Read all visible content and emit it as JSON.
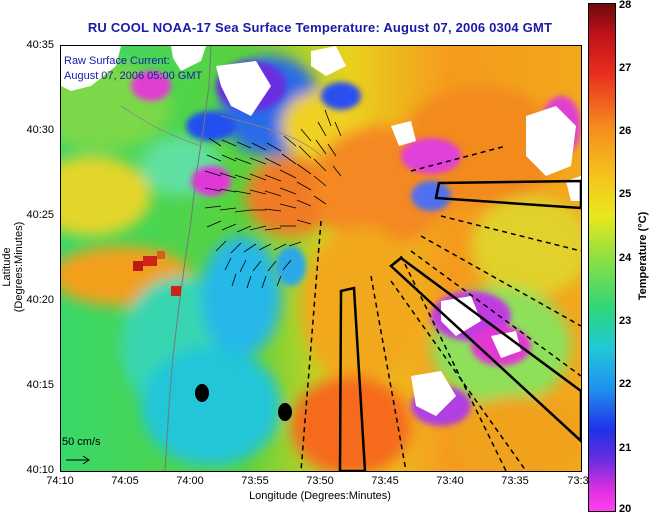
{
  "title": "RU COOL  NOAA-17  Sea Surface Temperature:  August 07, 2006 0304 GMT",
  "legend": {
    "line1": "Raw Surface Current:",
    "line2": "August 07, 2006 05:00 GMT"
  },
  "scale": {
    "label": "50 cm/s"
  },
  "axes": {
    "x_title": "Longitude (Degrees:Minutes)",
    "y_title": "Latitude (Degrees:Minutes)",
    "x_ticks": [
      "74:10",
      "74:05",
      "74:00",
      "73:55",
      "73:50",
      "73:45",
      "73:40",
      "73:35",
      "73:3"
    ],
    "y_ticks": [
      "40:35",
      "40:30",
      "40:25",
      "40:20",
      "40:15",
      "40:10"
    ]
  },
  "colorbar": {
    "title": "Temperature (°C)",
    "ticks": [
      "28",
      "27",
      "26",
      "25",
      "24",
      "23",
      "22",
      "21",
      "20"
    ]
  }
}
